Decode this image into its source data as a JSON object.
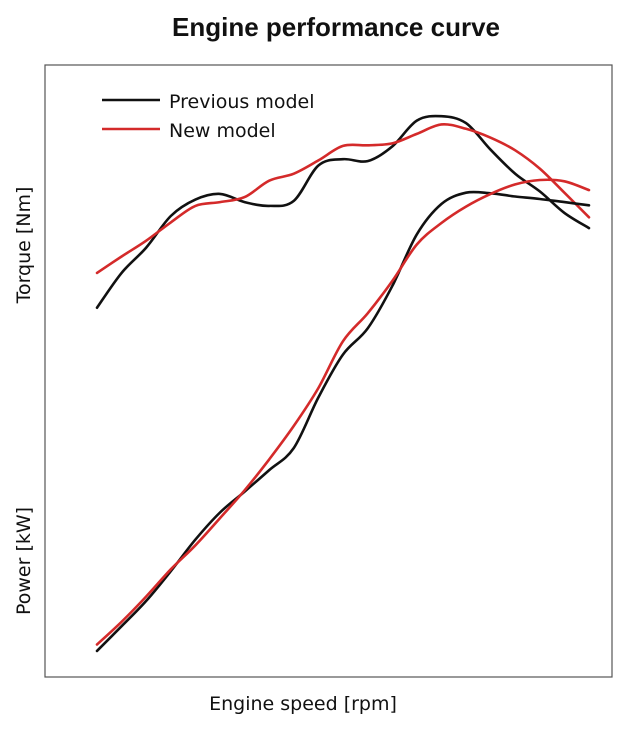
{
  "chart_data": {
    "type": "line",
    "title": "Engine performance curve",
    "xlabel": "Engine speed [rpm]",
    "ylabel_top": "Torque [Nm]",
    "ylabel_bottom": "Power [kW]",
    "xlim": [
      0,
      100
    ],
    "ylim": [
      0,
      100
    ],
    "ticks": "none",
    "grid": false,
    "legend_position": "top-left",
    "panels": [
      {
        "name": "Torque",
        "series": [
          {
            "name": "Previous model",
            "color": "#111111",
            "x": [
              0,
              5,
              10,
              15,
              20,
              25,
              30,
              35,
              40,
              45,
              50,
              55,
              60,
              65,
              70,
              75,
              80,
              85,
              90,
              95,
              100
            ],
            "y": [
              61.6,
              67.1,
              71.1,
              76.1,
              78.7,
              79.6,
              78.3,
              77.7,
              78.5,
              84.1,
              85.1,
              84.8,
              87.1,
              91.2,
              91.9,
              90.8,
              86.6,
              82.8,
              80.0,
              76.6,
              74.2
            ]
          },
          {
            "name": "New model",
            "color": "#d42a2a",
            "x": [
              0,
              5,
              10,
              15,
              20,
              25,
              30,
              35,
              40,
              45,
              50,
              55,
              60,
              65,
              70,
              75,
              80,
              85,
              90,
              95,
              100
            ],
            "y": [
              67.1,
              69.7,
              72.2,
              75.1,
              77.7,
              78.3,
              79.1,
              81.7,
              82.8,
              84.9,
              87.2,
              87.3,
              87.6,
              89.1,
              90.6,
              89.9,
              88.5,
              86.5,
              83.6,
              79.8,
              75.9
            ]
          }
        ]
      },
      {
        "name": "Power",
        "series": [
          {
            "name": "Previous model",
            "color": "#111111",
            "x": [
              0,
              5,
              10,
              15,
              20,
              25,
              30,
              35,
              40,
              45,
              50,
              55,
              60,
              65,
              70,
              75,
              80,
              85,
              90,
              95,
              100
            ],
            "y": [
              7.3,
              11.2,
              15.2,
              19.9,
              24.9,
              29.2,
              32.5,
              35.9,
              39.4,
              47.4,
              54.2,
              58.3,
              65.0,
              73.2,
              78.0,
              79.8,
              79.7,
              79.2,
              78.8,
              78.3,
              77.8
            ]
          },
          {
            "name": "New model",
            "color": "#d42a2a",
            "x": [
              0,
              5,
              10,
              15,
              20,
              25,
              30,
              35,
              40,
              45,
              50,
              55,
              60,
              65,
              70,
              75,
              80,
              85,
              90,
              95,
              100
            ],
            "y": [
              8.3,
              11.9,
              15.9,
              20.2,
              24.0,
              28.3,
              32.7,
              37.6,
              42.9,
              48.9,
              56.3,
              60.7,
              65.8,
              71.6,
              75.0,
              77.6,
              79.6,
              81.1,
              81.8,
              81.6,
              80.2
            ]
          }
        ]
      }
    ]
  }
}
